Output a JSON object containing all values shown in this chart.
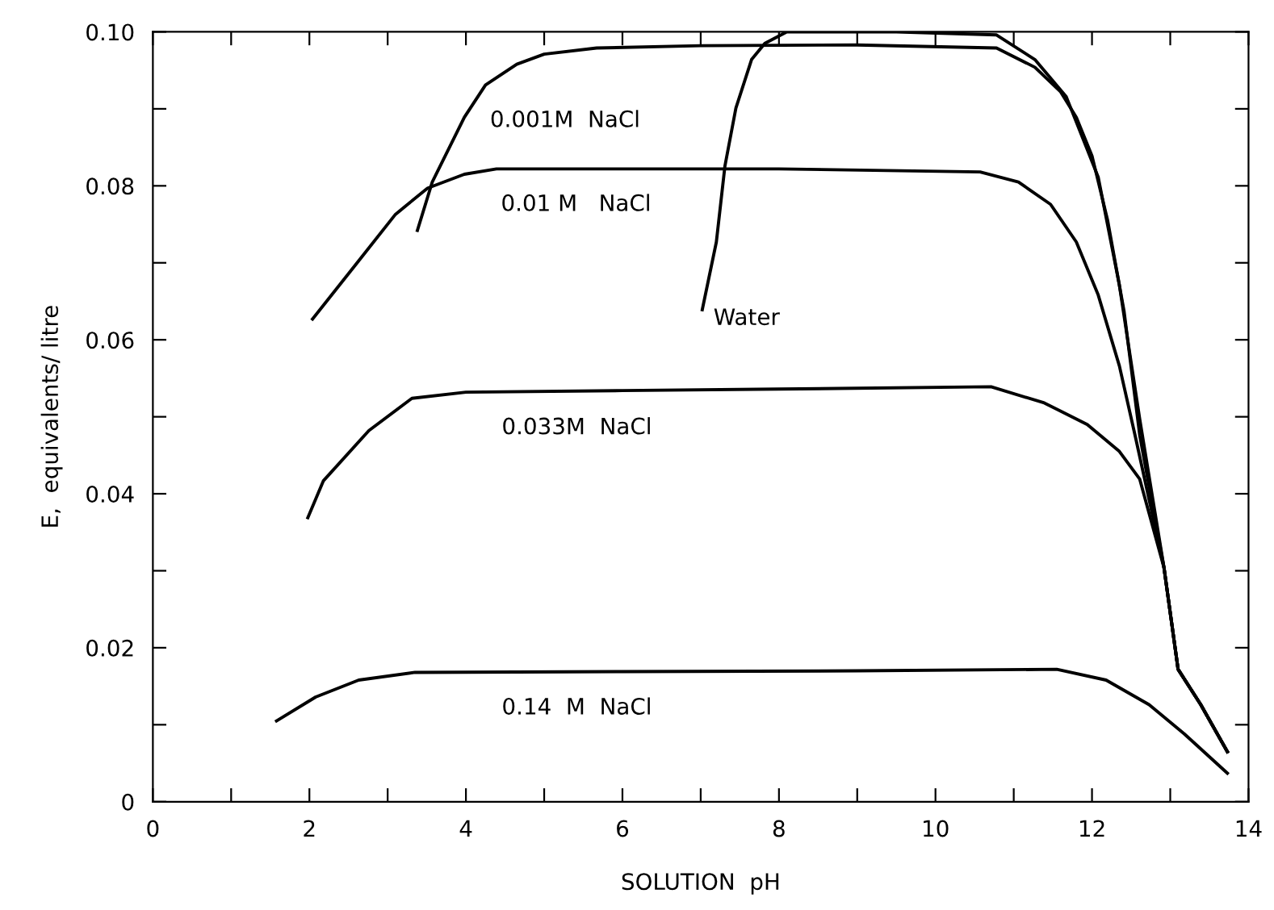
{
  "chart_data": {
    "type": "line",
    "xlabel": "SOLUTION  pH",
    "ylabel": "E,  equivalents/ litre",
    "xlim": [
      0,
      14
    ],
    "ylim": [
      0,
      0.1
    ],
    "xticks": [
      0,
      {
        "value": 1,
        "label": null
      },
      2,
      {
        "value": 3,
        "label": null
      },
      4,
      {
        "value": 5,
        "label": null
      },
      6,
      {
        "value": 7,
        "label": null
      },
      8,
      {
        "value": 9,
        "label": null
      },
      10,
      {
        "value": 11,
        "label": null
      },
      12,
      {
        "value": 13,
        "label": null
      },
      14
    ],
    "yticks": [
      0,
      {
        "value": 0.01,
        "label": null
      },
      0.02,
      {
        "value": 0.03,
        "label": null
      },
      0.04,
      {
        "value": 0.05,
        "label": null
      },
      0.06,
      {
        "value": 0.07,
        "label": null
      },
      0.08,
      {
        "value": 0.09,
        "label": null
      },
      {
        "value": 0.1,
        "label": "0.10"
      }
    ],
    "grid": false,
    "marker": "none",
    "line_style": "solid",
    "series": [
      {
        "color": "#000000",
        "x": [
          3.38,
          3.57,
          3.98,
          4.25,
          4.65,
          5.0,
          5.67,
          7.0,
          9.0,
          10.78,
          11.27,
          11.6,
          11.8,
          12.0,
          12.2,
          12.41,
          12.61,
          12.92,
          13.1,
          13.39,
          13.73
        ],
        "values": [
          0.0742,
          0.0805,
          0.0889,
          0.0931,
          0.0958,
          0.0971,
          0.0979,
          0.0982,
          0.0983,
          0.0979,
          0.0954,
          0.0922,
          0.0889,
          0.0839,
          0.0755,
          0.0637,
          0.0476,
          0.0304,
          0.0172,
          0.0126,
          0.0065
        ]
      },
      {
        "color": "#000000",
        "x": [
          2.04,
          2.61,
          3.1,
          3.51,
          3.98,
          4.39,
          6.0,
          8.0,
          10.57,
          11.06,
          11.47,
          11.8,
          12.08,
          12.35,
          12.55,
          12.92,
          13.1,
          13.39,
          13.73
        ],
        "values": [
          0.0627,
          0.07,
          0.0763,
          0.0797,
          0.0815,
          0.0822,
          0.0822,
          0.0822,
          0.0818,
          0.0805,
          0.0776,
          0.0727,
          0.0658,
          0.0566,
          0.0476,
          0.0304,
          0.0172,
          0.0126,
          0.0065
        ]
      },
      {
        "color": "#000000",
        "x": [
          7.02,
          7.2,
          7.31,
          7.45,
          7.65,
          7.82,
          8.1,
          9.5,
          10.78,
          11.27,
          11.67,
          12.08,
          12.35,
          12.61,
          12.92,
          13.1,
          13.39,
          13.73
        ],
        "values": [
          0.0639,
          0.0727,
          0.0826,
          0.0901,
          0.0964,
          0.0985,
          0.1,
          0.1,
          0.0996,
          0.0964,
          0.0916,
          0.0811,
          0.0671,
          0.0497,
          0.0304,
          0.0172,
          0.0126,
          0.0065
        ]
      },
      {
        "color": "#000000",
        "x": [
          1.98,
          2.18,
          2.76,
          3.31,
          4.0,
          6.0,
          8.0,
          10.71,
          11.39,
          11.94,
          12.35,
          12.61,
          12.92,
          13.1,
          13.39,
          13.73
        ],
        "values": [
          0.0369,
          0.0417,
          0.0482,
          0.0524,
          0.0532,
          0.0534,
          0.0536,
          0.0539,
          0.0518,
          0.049,
          0.0455,
          0.0419,
          0.0304,
          0.0172,
          0.0126,
          0.0065
        ]
      },
      {
        "color": "#000000",
        "x": [
          1.58,
          2.08,
          2.63,
          3.35,
          6.0,
          9.0,
          11.55,
          12.18,
          12.73,
          13.18,
          13.73
        ],
        "values": [
          0.0105,
          0.0136,
          0.0158,
          0.0168,
          0.0169,
          0.017,
          0.0172,
          0.0158,
          0.0126,
          0.0088,
          0.0037
        ]
      }
    ],
    "annotations": [
      {
        "text": "0.001M  NaCl",
        "x": 4.25,
        "y": 0.0931
      },
      {
        "text": "0.01 M   NaCl",
        "x": 4.39,
        "y": 0.0822
      },
      {
        "text": "Water",
        "x": 7.02,
        "y": 0.0639
      },
      {
        "text": "0.033M  NaCl",
        "x": 4.4,
        "y": 0.0532
      },
      {
        "text": "0.14  M  NaCl",
        "x": 4.4,
        "y": 0.0168
      }
    ]
  }
}
